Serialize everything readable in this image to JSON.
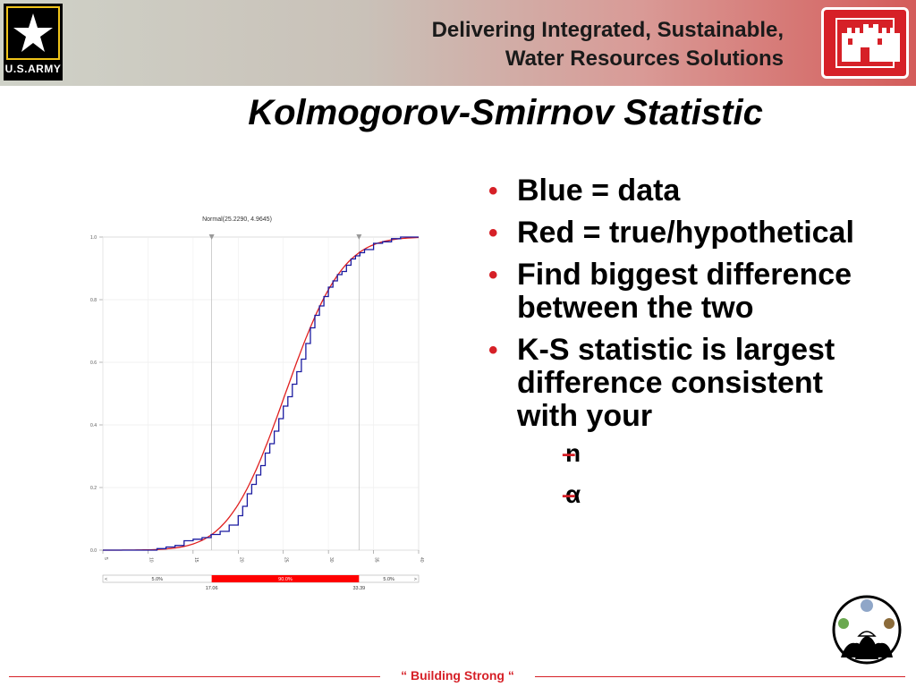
{
  "header": {
    "tagline_line1": "Delivering Integrated, Sustainable,",
    "tagline_line2": "Water Resources Solutions",
    "army_logo_text": "U.S.ARMY",
    "accent_color": "#d62027"
  },
  "slide": {
    "title": "Kolmogorov-Smirnov Statistic"
  },
  "bullets": [
    "Blue = data",
    "Red = true/hypothetical",
    "Find biggest difference between the two",
    "K-S statistic is largest difference consistent with your"
  ],
  "sub_bullets": [
    "n",
    "α"
  ],
  "footer": {
    "text": "“ Building  Strong “"
  },
  "chart_data": {
    "type": "line",
    "title": "Normal(25.2290, 4.9645)",
    "xlim": [
      5,
      40
    ],
    "ylim": [
      0,
      1
    ],
    "x_ticks": [
      "5",
      "10",
      "15",
      "20",
      "25",
      "30",
      "35",
      "40"
    ],
    "y_ticks": [
      "0.0",
      "0.2",
      "0.4",
      "0.6",
      "0.8",
      "1.0"
    ],
    "markers": [
      17.06,
      33.39
    ],
    "series": [
      {
        "color": "#1a1aa0",
        "kind": "empirical",
        "x": [
          5,
          11,
          12,
          13,
          14,
          15,
          16,
          17,
          18,
          19,
          20,
          20.5,
          21,
          21.5,
          22,
          22.5,
          23,
          23.5,
          24,
          24.5,
          25,
          25.5,
          26,
          26.5,
          27,
          27.5,
          28,
          28.5,
          29,
          29.5,
          30,
          30.5,
          31,
          31.5,
          32,
          32.5,
          33,
          33.5,
          34,
          35,
          36,
          37,
          38,
          40
        ],
        "y": [
          0,
          0.005,
          0.01,
          0.015,
          0.03,
          0.035,
          0.04,
          0.05,
          0.06,
          0.08,
          0.11,
          0.14,
          0.18,
          0.21,
          0.24,
          0.27,
          0.31,
          0.34,
          0.38,
          0.42,
          0.46,
          0.49,
          0.53,
          0.57,
          0.61,
          0.66,
          0.71,
          0.75,
          0.78,
          0.81,
          0.84,
          0.86,
          0.88,
          0.89,
          0.91,
          0.93,
          0.94,
          0.95,
          0.96,
          0.98,
          0.985,
          0.995,
          1.0,
          1.0
        ]
      },
      {
        "color": "#e02020",
        "kind": "cdf",
        "mean": 25.229,
        "sd": 4.9645
      }
    ],
    "range_bar": {
      "left_label": "5.0%",
      "middle_label": "90.0%",
      "right_label": "5.0%",
      "low_value": "17.06",
      "high_value": "33.39",
      "left_arrow": "<",
      "right_arrow": ">"
    }
  }
}
